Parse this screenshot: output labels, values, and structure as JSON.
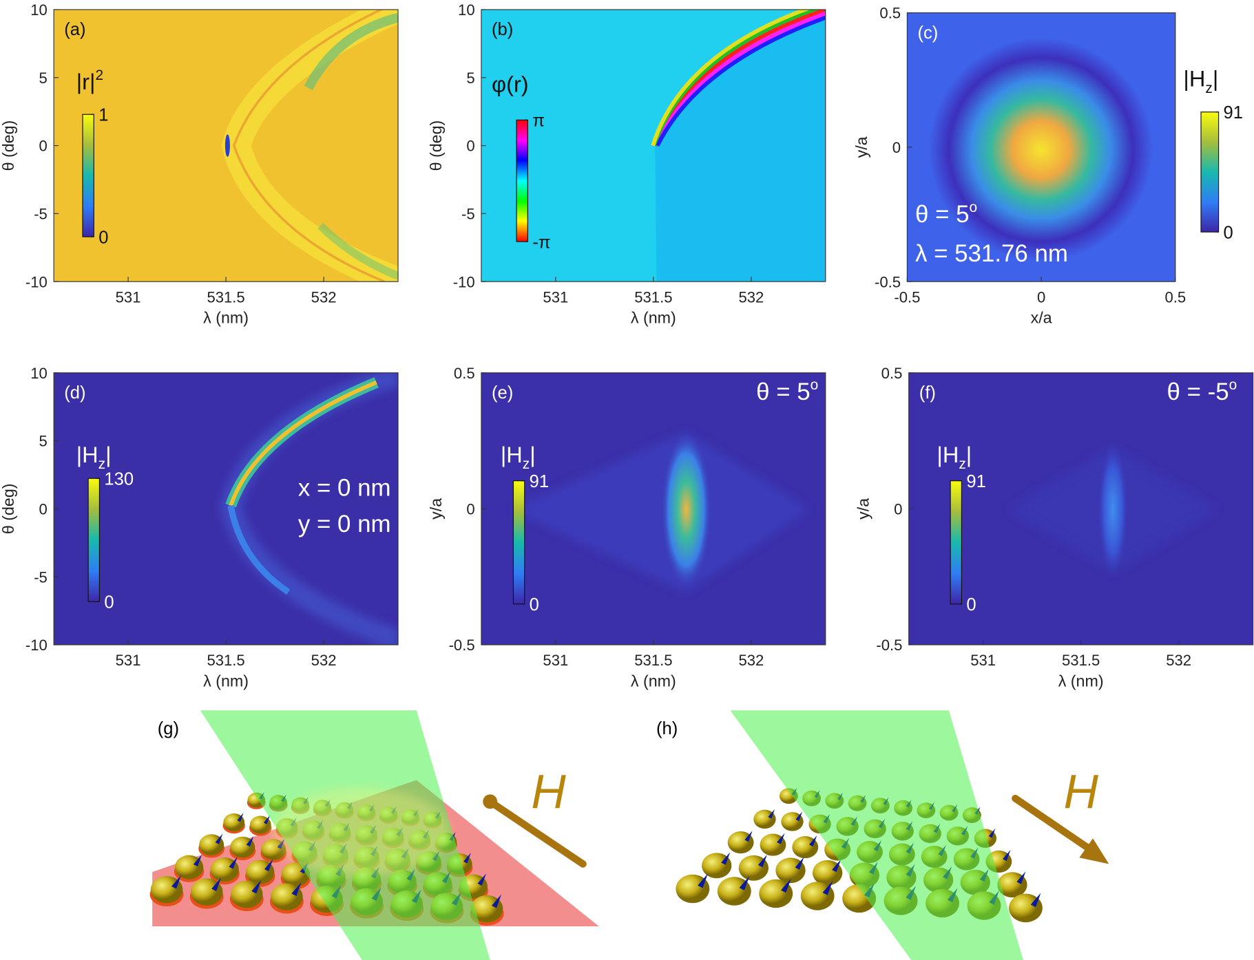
{
  "chart_data": [
    {
      "type": "heatmap",
      "panel_label": "(a)",
      "xlabel": "λ (nm)",
      "ylabel": "θ (deg)",
      "xlim": [
        530.62,
        532.38
      ],
      "xticks": [
        531,
        531.5,
        532
      ],
      "ylim": [
        -10,
        10
      ],
      "yticks": [
        -10,
        -5,
        0,
        5,
        10
      ],
      "colormap": "parula",
      "colorbar": {
        "title": {
          "text": "|r|",
          "sup": "2"
        },
        "clim": [
          0,
          1
        ],
        "ticks": [
          0,
          1
        ]
      },
      "annotations": []
    },
    {
      "type": "heatmap",
      "panel_label": "(b)",
      "xlabel": "λ (nm)",
      "ylabel": "θ (deg)",
      "xlim": [
        530.62,
        532.38
      ],
      "xticks": [
        531,
        531.5,
        532
      ],
      "ylim": [
        -10,
        10
      ],
      "yticks": [
        -10,
        -5,
        0,
        5,
        10
      ],
      "colormap": "hsv",
      "colorbar": {
        "title": {
          "text": "φ(r)"
        },
        "clim": [
          -3.14159,
          3.14159
        ],
        "ticks": [
          {
            "value": -3.14159,
            "label": "-π"
          },
          {
            "value": 3.14159,
            "label": "π"
          }
        ]
      },
      "annotations": []
    },
    {
      "type": "heatmap",
      "panel_label": "(c)",
      "xlabel": "x/a",
      "ylabel": "y/a",
      "xlim": [
        -0.5,
        0.5
      ],
      "xticks": [
        -0.5,
        0,
        0.5
      ],
      "ylim": [
        -0.5,
        0.5
      ],
      "yticks": [
        -0.5,
        0,
        0.5
      ],
      "colormap": "parula",
      "colorbar": {
        "title": {
          "text": "|H",
          "sub": "z",
          "end": "|"
        },
        "clim": [
          0,
          91
        ],
        "ticks": [
          0,
          91
        ]
      },
      "annotations": [
        {
          "text": "θ = 5",
          "sup": "o"
        },
        {
          "text": "λ = 531.76 nm"
        }
      ]
    },
    {
      "type": "heatmap",
      "panel_label": "(d)",
      "xlabel": "λ (nm)",
      "ylabel": "θ (deg)",
      "xlim": [
        530.62,
        532.38
      ],
      "xticks": [
        531,
        531.5,
        532
      ],
      "ylim": [
        -10,
        10
      ],
      "yticks": [
        -10,
        -5,
        0,
        5,
        10
      ],
      "colormap": "parula",
      "colorbar": {
        "title": {
          "text": "|H",
          "sub": "z",
          "end": "|"
        },
        "clim": [
          0,
          130
        ],
        "ticks": [
          0,
          130
        ]
      },
      "annotations": [
        {
          "text": "x = 0 nm"
        },
        {
          "text": "y = 0 nm"
        }
      ]
    },
    {
      "type": "heatmap",
      "panel_label": "(e)",
      "xlabel": "λ (nm)",
      "ylabel": "y/a",
      "xlim": [
        530.62,
        532.38
      ],
      "xticks": [
        531,
        531.5,
        532
      ],
      "ylim": [
        -0.5,
        0.5
      ],
      "yticks": [
        -0.5,
        0,
        0.5
      ],
      "colormap": "parula",
      "colorbar": {
        "title": {
          "text": "|H",
          "sub": "z",
          "end": "|"
        },
        "clim": [
          0,
          91
        ],
        "ticks": [
          0,
          91
        ]
      },
      "annotations": [
        {
          "text": "θ = 5",
          "sup": "o"
        }
      ]
    },
    {
      "type": "heatmap",
      "panel_label": "(f)",
      "xlabel": "λ (nm)",
      "ylabel": "y/a",
      "xlim": [
        530.62,
        532.38
      ],
      "xticks": [
        531,
        531.5,
        532
      ],
      "ylim": [
        -0.5,
        0.5
      ],
      "yticks": [
        -0.5,
        0,
        0.5
      ],
      "colormap": "parula",
      "colorbar": {
        "title": {
          "text": "|H",
          "sub": "z",
          "end": "|"
        },
        "clim": [
          0,
          91
        ],
        "ticks": [
          0,
          91
        ]
      },
      "annotations": [
        {
          "text": "θ = -5",
          "sup": "o"
        }
      ]
    }
  ],
  "illustrations": [
    {
      "label": "(g)",
      "field_label": "H"
    },
    {
      "label": "(h)",
      "field_label": "H"
    }
  ]
}
